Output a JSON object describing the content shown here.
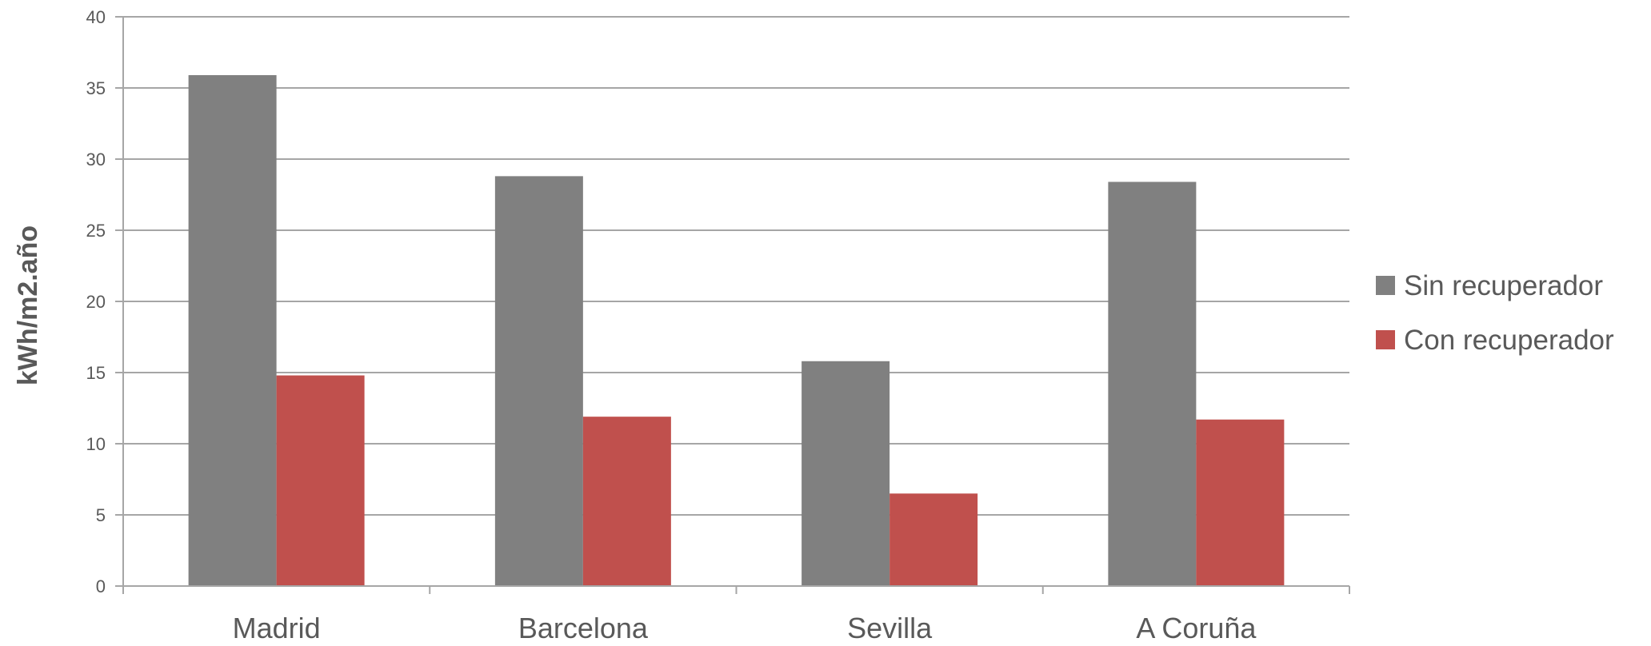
{
  "chart_data": {
    "type": "bar",
    "categories": [
      "Madrid",
      "Barcelona",
      "Sevilla",
      "A Coruña"
    ],
    "series": [
      {
        "name": "Sin recuperador",
        "values": [
          35.9,
          28.8,
          15.8,
          28.4
        ],
        "color": "#808080"
      },
      {
        "name": "Con recuperador",
        "values": [
          14.8,
          11.9,
          6.5,
          11.7
        ],
        "color": "#C0504D"
      }
    ],
    "title": "",
    "xlabel": "",
    "ylabel": "kWh/m2.año",
    "ylim": [
      0,
      40
    ],
    "yticks": [
      "0",
      "5",
      "10",
      "15",
      "20",
      "25",
      "30",
      "35",
      "40"
    ],
    "grid": true,
    "legend_position": "right",
    "colors": {
      "grid": "#A6A6A6",
      "axis": "#A6A6A6",
      "text": "#595959"
    }
  }
}
